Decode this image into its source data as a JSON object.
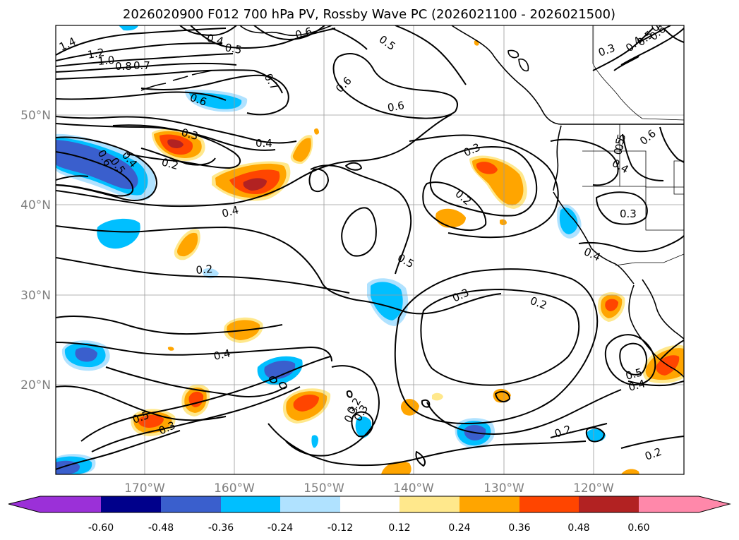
{
  "title": "2026020900 F012 700 hPa PV, Rossby Wave PC (2026021100 - 2026021500)",
  "latitude_labels": [
    "50°N",
    "40°N",
    "30°N",
    "20°N"
  ],
  "longitude_labels": [
    "170°W",
    "160°W",
    "150°W",
    "140°W",
    "130°W",
    "120°W"
  ],
  "colorbar": {
    "levels": [
      "-0.60",
      "-0.48",
      "-0.36",
      "-0.24",
      "-0.12",
      "0.12",
      "0.24",
      "0.36",
      "0.48",
      "0.60"
    ],
    "colors": [
      "#9b30d8",
      "#00008b",
      "#3a5fcd",
      "#00bfff",
      "#b0e2ff",
      "#ffffff",
      "#ffe88c",
      "#ffa500",
      "#ff4500",
      "#b22222",
      "#ff88aa"
    ]
  },
  "contour_labels": [
    {
      "text": "1.4"
    },
    {
      "text": "1.2"
    },
    {
      "text": "1.0"
    },
    {
      "text": "0.8"
    },
    {
      "text": "0.7"
    },
    {
      "text": "0.4"
    },
    {
      "text": "0.5"
    },
    {
      "text": "0.6"
    },
    {
      "text": "0.5"
    },
    {
      "text": "0.7"
    },
    {
      "text": "0.6"
    },
    {
      "text": "0.3"
    },
    {
      "text": "0.4"
    },
    {
      "text": "0.2"
    },
    {
      "text": "0.6"
    },
    {
      "text": "0.5"
    },
    {
      "text": "0.4"
    },
    {
      "text": "0.4"
    },
    {
      "text": "0.2"
    },
    {
      "text": "0.6"
    },
    {
      "text": "0.6"
    },
    {
      "text": "0.5"
    },
    {
      "text": "0.3"
    },
    {
      "text": "0.2"
    },
    {
      "text": "0.3"
    },
    {
      "text": "0.2"
    },
    {
      "text": "0.4"
    },
    {
      "text": "0.3"
    },
    {
      "text": "0.2"
    },
    {
      "text": "0.2"
    },
    {
      "text": "0.5"
    },
    {
      "text": "0.4"
    },
    {
      "text": "0.4"
    },
    {
      "text": "0.5"
    },
    {
      "text": "0.3"
    },
    {
      "text": "0.3"
    },
    {
      "text": "0.3"
    },
    {
      "text": "0.4"
    },
    {
      "text": "0.5"
    },
    {
      "text": "0.6"
    },
    {
      "text": "0.2"
    },
    {
      "text": "0.2"
    },
    {
      "text": "0.5"
    },
    {
      "text": "0.4"
    },
    {
      "text": "0.5"
    },
    {
      "text": "0.6"
    },
    {
      "text": "0.3"
    }
  ],
  "anomaly_features": [
    {
      "sign": "negative",
      "strength": -0.48
    },
    {
      "sign": "negative",
      "strength": -0.36
    },
    {
      "sign": "negative",
      "strength": -0.24
    },
    {
      "sign": "negative",
      "strength": -0.36
    },
    {
      "sign": "negative",
      "strength": -0.36
    },
    {
      "sign": "negative",
      "strength": -0.48
    },
    {
      "sign": "negative",
      "strength": -0.48
    },
    {
      "sign": "negative",
      "strength": -0.36
    },
    {
      "sign": "negative",
      "strength": -0.36
    },
    {
      "sign": "negative",
      "strength": -0.48
    },
    {
      "sign": "negative",
      "strength": -0.24
    },
    {
      "sign": "negative",
      "strength": -0.36
    },
    {
      "sign": "negative",
      "strength": -0.24
    },
    {
      "sign": "negative",
      "strength": -0.36
    },
    {
      "sign": "positive",
      "strength": 0.48
    },
    {
      "sign": "positive",
      "strength": 0.48
    },
    {
      "sign": "positive",
      "strength": 0.36
    },
    {
      "sign": "positive",
      "strength": 0.36
    },
    {
      "sign": "positive",
      "strength": 0.24
    },
    {
      "sign": "positive",
      "strength": 0.24
    },
    {
      "sign": "positive",
      "strength": 0.24
    },
    {
      "sign": "positive",
      "strength": 0.36
    },
    {
      "sign": "positive",
      "strength": 0.36
    },
    {
      "sign": "positive",
      "strength": 0.36
    },
    {
      "sign": "positive",
      "strength": 0.36
    },
    {
      "sign": "positive",
      "strength": 0.24
    },
    {
      "sign": "positive",
      "strength": 0.24
    },
    {
      "sign": "positive",
      "strength": 0.24
    },
    {
      "sign": "positive",
      "strength": 0.36
    },
    {
      "sign": "positive",
      "strength": 0.36
    },
    {
      "sign": "positive",
      "strength": 0.24
    }
  ]
}
